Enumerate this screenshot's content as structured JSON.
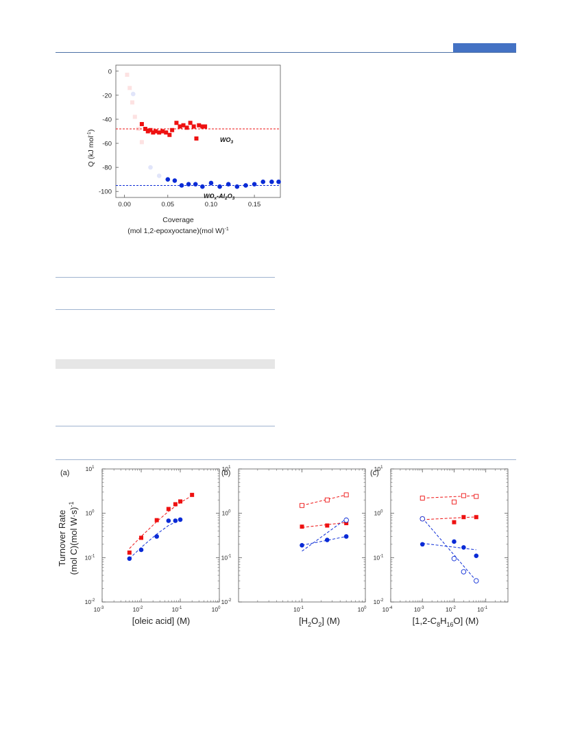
{
  "header": {
    "accent_color": "#4472c4"
  },
  "chart_data": [
    {
      "type": "scatter",
      "id": "calorimetry",
      "title": "",
      "xlabel_line1": "Coverage",
      "xlabel_line2": "(mol 1,2-epoxyoctane)(mol W)",
      "xlabel_sup": "-1",
      "ylabel_pre": "Q (kJ mol",
      "ylabel_sup": "-1",
      "ylabel_post": ")",
      "xlim": [
        -0.01,
        0.18
      ],
      "ylim": [
        -105,
        5
      ],
      "xticks": [
        "0.00",
        "0.05",
        "0.10",
        "0.15"
      ],
      "yticks": [
        "0",
        "-20",
        "-40",
        "-60",
        "-80",
        "-100"
      ],
      "series": [
        {
          "name": "WO3",
          "label_main": "WO",
          "label_sub": "3",
          "marker": "square",
          "color": "#ee1111",
          "points": [
            [
              0.02,
              -44
            ],
            [
              0.024,
              -48
            ],
            [
              0.027,
              -50
            ],
            [
              0.03,
              -49
            ],
            [
              0.033,
              -51
            ],
            [
              0.036,
              -50
            ],
            [
              0.04,
              -51
            ],
            [
              0.044,
              -50
            ],
            [
              0.048,
              -51
            ],
            [
              0.052,
              -53
            ],
            [
              0.055,
              -49
            ],
            [
              0.06,
              -43
            ],
            [
              0.064,
              -46
            ],
            [
              0.068,
              -45
            ],
            [
              0.072,
              -47
            ],
            [
              0.076,
              -43
            ],
            [
              0.08,
              -46
            ],
            [
              0.083,
              -56
            ],
            [
              0.086,
              -45
            ],
            [
              0.09,
              -46
            ],
            [
              0.093,
              -46
            ]
          ],
          "faded_points": [
            [
              0.003,
              -3
            ],
            [
              0.006,
              -14
            ],
            [
              0.009,
              -26
            ],
            [
              0.012,
              -38
            ],
            [
              0.016,
              -48
            ],
            [
              0.02,
              -59
            ]
          ],
          "fit_y": -48
        },
        {
          "name": "WOx-Al2O3",
          "label_main": "WO",
          "label_sub1": "x",
          "label_mid": "-Al",
          "label_sub2": "2",
          "label_end": "O",
          "label_sub3": "3",
          "marker": "circle",
          "color": "#0a2bd6",
          "points": [
            [
              0.05,
              -90
            ],
            [
              0.058,
              -91
            ],
            [
              0.066,
              -95
            ],
            [
              0.074,
              -94
            ],
            [
              0.082,
              -94
            ],
            [
              0.09,
              -96
            ],
            [
              0.1,
              -93
            ],
            [
              0.11,
              -96
            ],
            [
              0.12,
              -94
            ],
            [
              0.13,
              -96
            ],
            [
              0.14,
              -95
            ],
            [
              0.15,
              -94
            ],
            [
              0.16,
              -92
            ],
            [
              0.17,
              -92
            ],
            [
              0.178,
              -92
            ]
          ],
          "faded_points": [
            [
              0.01,
              -19
            ],
            [
              0.03,
              -80
            ],
            [
              0.04,
              -87
            ]
          ],
          "fit_y": -95
        }
      ]
    },
    {
      "type": "scatter",
      "id": "panel-a",
      "panel_label": "(a)",
      "title": "",
      "xlabel": "[oleic acid] (M)",
      "ylabel_line1": "Turnover Rate",
      "ylabel_line2": "(mol C)(mol W·s)",
      "ylabel_sup": "-1",
      "xscale": "log",
      "yscale": "log",
      "xlim": [
        0.001,
        1
      ],
      "ylim": [
        0.01,
        10
      ],
      "xtick_exps": [
        "-3",
        "-2",
        "-1",
        "0"
      ],
      "ytick_exps": [
        "-2",
        "-1",
        "0",
        "1"
      ],
      "series": [
        {
          "name": "WO3",
          "marker": "square",
          "filled": true,
          "color": "#ee1111",
          "x": [
            0.005,
            0.01,
            0.025,
            0.05,
            0.075,
            0.1,
            0.2
          ],
          "y": [
            0.13,
            0.28,
            0.7,
            1.25,
            1.6,
            1.85,
            2.6
          ],
          "fit": {
            "type": "curve",
            "x": [
              0.005,
              0.01,
              0.025,
              0.05,
              0.1,
              0.2
            ],
            "y": [
              0.16,
              0.3,
              0.65,
              1.1,
              1.75,
              2.5
            ]
          }
        },
        {
          "name": "WOx-Al2O3",
          "marker": "circle",
          "filled": true,
          "color": "#0a2bd6",
          "x": [
            0.005,
            0.01,
            0.025,
            0.05,
            0.075,
            0.1
          ],
          "y": [
            0.095,
            0.15,
            0.3,
            0.68,
            0.68,
            0.72
          ],
          "fit": {
            "type": "curve",
            "x": [
              0.005,
              0.01,
              0.025,
              0.05,
              0.075,
              0.1
            ],
            "y": [
              0.095,
              0.17,
              0.34,
              0.53,
              0.63,
              0.7
            ]
          }
        }
      ]
    },
    {
      "type": "scatter",
      "id": "panel-b",
      "panel_label": "(b)",
      "title": "",
      "xlabel_pre": "[H",
      "xlabel_sub1": "2",
      "xlabel_mid": "O",
      "xlabel_sub2": "2",
      "xlabel_post": "] (M)",
      "xscale": "log",
      "yscale": "log",
      "xlim": [
        0.01,
        1
      ],
      "ylim": [
        0.01,
        10
      ],
      "xtick_exps": [
        "-1",
        "0"
      ],
      "ytick_exps": [
        "-2",
        "-1",
        "0",
        "1"
      ],
      "series": [
        {
          "name": "WO3 open",
          "marker": "square",
          "filled": false,
          "color": "#ee1111",
          "x": [
            0.1,
            0.25,
            0.5
          ],
          "y": [
            1.5,
            2.0,
            2.6
          ],
          "fit": {
            "type": "line",
            "x": [
              0.1,
              0.5
            ],
            "y": [
              1.5,
              2.6
            ]
          }
        },
        {
          "name": "WO3",
          "marker": "square",
          "filled": true,
          "color": "#ee1111",
          "x": [
            0.1,
            0.25,
            0.5
          ],
          "y": [
            0.5,
            0.53,
            0.6
          ],
          "fit": {
            "type": "line",
            "x": [
              0.1,
              0.5
            ],
            "y": [
              0.48,
              0.62
            ]
          }
        },
        {
          "name": "WOx-Al2O3 open",
          "marker": "circle",
          "filled": false,
          "color": "#0a2bd6",
          "x": [
            0.5
          ],
          "y": [
            0.7
          ],
          "fit": {
            "type": "line",
            "x": [
              0.1,
              0.5
            ],
            "y": [
              0.14,
              0.75
            ]
          }
        },
        {
          "name": "WOx-Al2O3",
          "marker": "circle",
          "filled": true,
          "color": "#0a2bd6",
          "x": [
            0.1,
            0.25,
            0.5
          ],
          "y": [
            0.19,
            0.25,
            0.3
          ],
          "fit": {
            "type": "line",
            "x": [
              0.1,
              0.5
            ],
            "y": [
              0.19,
              0.3
            ]
          }
        }
      ]
    },
    {
      "type": "scatter",
      "id": "panel-c",
      "panel_label": "(c)",
      "title": "",
      "xlabel_pre": "[1,2-C",
      "xlabel_sub1": "8",
      "xlabel_mid": "H",
      "xlabel_sub2": "16",
      "xlabel_post": "O] (M)",
      "xscale": "log",
      "yscale": "log",
      "xlim": [
        0.0001,
        0.5
      ],
      "ylim": [
        0.01,
        10
      ],
      "xtick_exps": [
        "-4",
        "-3",
        "-2",
        "-1"
      ],
      "ytick_exps": [
        "-2",
        "-1",
        "0",
        "1"
      ],
      "series": [
        {
          "name": "WO3 open",
          "marker": "square",
          "filled": false,
          "color": "#ee1111",
          "x": [
            0.001,
            0.01,
            0.02,
            0.05
          ],
          "y": [
            2.2,
            1.8,
            2.5,
            2.4
          ],
          "fit": {
            "type": "line",
            "x": [
              0.001,
              0.05
            ],
            "y": [
              2.2,
              2.5
            ]
          }
        },
        {
          "name": "WO3",
          "marker": "square",
          "filled": true,
          "color": "#ee1111",
          "x": [
            0.001,
            0.01,
            0.02,
            0.05
          ],
          "y": [
            0.75,
            0.63,
            0.82,
            0.82
          ],
          "fit": {
            "type": "line",
            "x": [
              0.001,
              0.05
            ],
            "y": [
              0.72,
              0.83
            ]
          }
        },
        {
          "name": "WOx-Al2O3",
          "marker": "circle",
          "filled": true,
          "color": "#0a2bd6",
          "x": [
            0.001,
            0.01,
            0.02,
            0.05
          ],
          "y": [
            0.2,
            0.23,
            0.17,
            0.11
          ],
          "fit": {
            "type": "line",
            "x": [
              0.001,
              0.05
            ],
            "y": [
              0.21,
              0.15
            ]
          }
        },
        {
          "name": "WOx-Al2O3 open",
          "marker": "circle",
          "filled": false,
          "color": "#0a2bd6",
          "x": [
            0.001,
            0.01,
            0.02,
            0.05
          ],
          "y": [
            0.75,
            0.095,
            0.048,
            0.03
          ],
          "fit": {
            "type": "line",
            "x": [
              0.001,
              0.05
            ],
            "y": [
              0.78,
              0.03
            ]
          }
        }
      ]
    }
  ]
}
